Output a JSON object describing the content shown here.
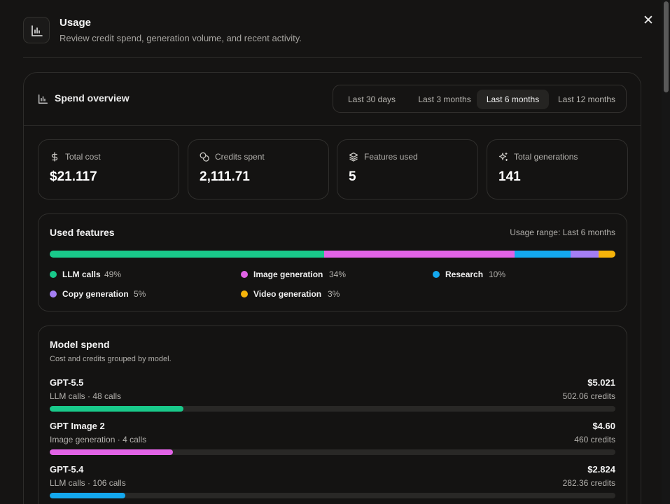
{
  "header": {
    "icon": "bar-chart-icon",
    "title": "Usage",
    "subtitle": "Review credit spend, generation volume, and recent activity.",
    "close_icon": "close-icon"
  },
  "overview": {
    "title": "Spend overview",
    "icon": "bar-chart-icon",
    "tabs": [
      "Last 30 days",
      "Last 3 months",
      "Last 6 months",
      "Last 12 months"
    ],
    "active_tab": "Last 6 months"
  },
  "stats": [
    {
      "icon": "dollar-icon",
      "label": "Total cost",
      "value": "$21.117"
    },
    {
      "icon": "coins-icon",
      "label": "Credits spent",
      "value": "2,111.71"
    },
    {
      "icon": "layers-icon",
      "label": "Features used",
      "value": "5"
    },
    {
      "icon": "sparkles-icon",
      "label": "Total generations",
      "value": "141"
    }
  ],
  "used_features": {
    "title": "Used features",
    "range": "Usage range: Last 6 months",
    "items": [
      {
        "name": "LLM calls",
        "pct": "49%",
        "share": 49,
        "color": "#19c98a"
      },
      {
        "name": "Image generation",
        "pct": "34%",
        "share": 34,
        "color": "#e163e6"
      },
      {
        "name": "Research",
        "pct": "10%",
        "share": 10,
        "color": "#14a8ee"
      },
      {
        "name": "Copy generation",
        "pct": "5%",
        "share": 5,
        "color": "#a47ef4"
      },
      {
        "name": "Video generation",
        "pct": "3%",
        "share": 3,
        "color": "#f5b30a"
      }
    ]
  },
  "model_spend": {
    "title": "Model spend",
    "description": "Cost and credits grouped by model.",
    "models": [
      {
        "name": "GPT-5.5",
        "meta": "LLM calls · 48 calls",
        "cost": "$5.021",
        "credits": "502.06 credits",
        "share": 0.237,
        "color": "#19c98a"
      },
      {
        "name": "GPT Image 2",
        "meta": "Image generation · 4 calls",
        "cost": "$4.60",
        "credits": "460 credits",
        "share": 0.218,
        "color": "#e163e6"
      },
      {
        "name": "GPT-5.4",
        "meta": "LLM calls · 106 calls",
        "cost": "$2.824",
        "credits": "282.36 credits",
        "share": 0.134,
        "color": "#14a8ee"
      }
    ]
  }
}
